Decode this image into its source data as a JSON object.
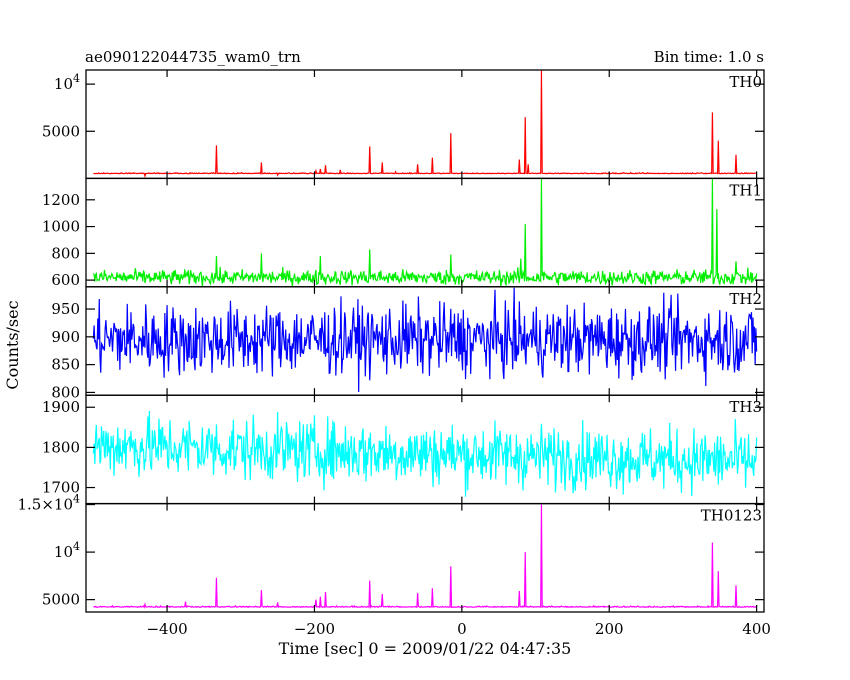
{
  "header": {
    "title": "ae090122044735_wam0_trn",
    "bin_time": "Bin time: 1.0 s"
  },
  "chart_data": {
    "type": "line",
    "xlabel": "Time [sec] 0 = 2009/01/22 04:47:35",
    "ylabel": "Counts/sec",
    "xlim": [
      -510,
      410
    ],
    "xticks": [
      "−400",
      "−200",
      "0",
      "200",
      "400"
    ],
    "xtick_values": [
      -400,
      -200,
      0,
      200,
      400
    ],
    "panels": [
      {
        "name": "TH0",
        "color": "#ff0000",
        "ylim": [
          0,
          11500
        ],
        "yticks": [
          {
            "v": 5000,
            "label": "5000"
          },
          {
            "v": 10000,
            "label": "10^4"
          }
        ],
        "baseline": 500,
        "noise": 60,
        "spikes": [
          [
            -430,
            250
          ],
          [
            -375,
            550
          ],
          [
            -370,
            500
          ],
          [
            -333,
            3500
          ],
          [
            -272,
            1700
          ],
          [
            -250,
            350
          ],
          [
            -205,
            600
          ],
          [
            -198,
            800
          ],
          [
            -192,
            1000
          ],
          [
            -185,
            1400
          ],
          [
            -165,
            900
          ],
          [
            -155,
            600
          ],
          [
            -125,
            3400
          ],
          [
            -108,
            1700
          ],
          [
            -90,
            700
          ],
          [
            -60,
            1500
          ],
          [
            -40,
            2200
          ],
          [
            -15,
            4800
          ],
          [
            78,
            2000
          ],
          [
            86,
            6500
          ],
          [
            90,
            1500
          ],
          [
            108,
            11500
          ],
          [
            340,
            7000
          ],
          [
            348,
            4000
          ],
          [
            372,
            2500
          ]
        ]
      },
      {
        "name": "TH1",
        "color": "#00ee00",
        "ylim": [
          550,
          1360
        ],
        "yticks": [
          {
            "v": 600,
            "label": "600"
          },
          {
            "v": 800,
            "label": "800"
          },
          {
            "v": 1000,
            "label": "1000"
          },
          {
            "v": 1200,
            "label": "1200"
          }
        ],
        "baseline": 620,
        "noise": 40,
        "spikes": [
          [
            -333,
            780
          ],
          [
            -272,
            800
          ],
          [
            -192,
            780
          ],
          [
            -125,
            830
          ],
          [
            -15,
            790
          ],
          [
            80,
            760
          ],
          [
            86,
            1020
          ],
          [
            108,
            1360
          ],
          [
            340,
            1360
          ],
          [
            346,
            1130
          ],
          [
            372,
            740
          ]
        ]
      },
      {
        "name": "TH2",
        "color": "#0000ff",
        "ylim": [
          795,
          990
        ],
        "yticks": [
          {
            "v": 800,
            "label": "800"
          },
          {
            "v": 850,
            "label": "850"
          },
          {
            "v": 900,
            "label": "900"
          },
          {
            "v": 950,
            "label": "950"
          }
        ],
        "baseline": 895,
        "noise": 45,
        "spikes": []
      },
      {
        "name": "TH3",
        "color": "#00ffff",
        "ylim": [
          1660,
          1930
        ],
        "yticks": [
          {
            "v": 1700,
            "label": "1700"
          },
          {
            "v": 1800,
            "label": "1800"
          },
          {
            "v": 1900,
            "label": "1900"
          }
        ],
        "baseline": 1805,
        "noise": 55,
        "trend": -40,
        "spikes": []
      },
      {
        "name": "TH0123",
        "color": "#ff00ff",
        "ylim": [
          3700,
          15100
        ],
        "yticks": [
          {
            "v": 5000,
            "label": "5000"
          },
          {
            "v": 10000,
            "label": "10^4"
          },
          {
            "v": 15000,
            "label": "1.5×10^4"
          }
        ],
        "baseline": 4200,
        "noise": 80,
        "spikes": [
          [
            -430,
            4500
          ],
          [
            -375,
            4800
          ],
          [
            -333,
            7300
          ],
          [
            -272,
            6000
          ],
          [
            -250,
            4700
          ],
          [
            -198,
            5000
          ],
          [
            -192,
            5300
          ],
          [
            -185,
            5800
          ],
          [
            -125,
            7000
          ],
          [
            -108,
            5600
          ],
          [
            -60,
            5700
          ],
          [
            -40,
            6200
          ],
          [
            -15,
            8500
          ],
          [
            78,
            5900
          ],
          [
            86,
            10000
          ],
          [
            108,
            15000
          ],
          [
            340,
            11000
          ],
          [
            348,
            8000
          ],
          [
            372,
            6500
          ]
        ]
      }
    ]
  }
}
